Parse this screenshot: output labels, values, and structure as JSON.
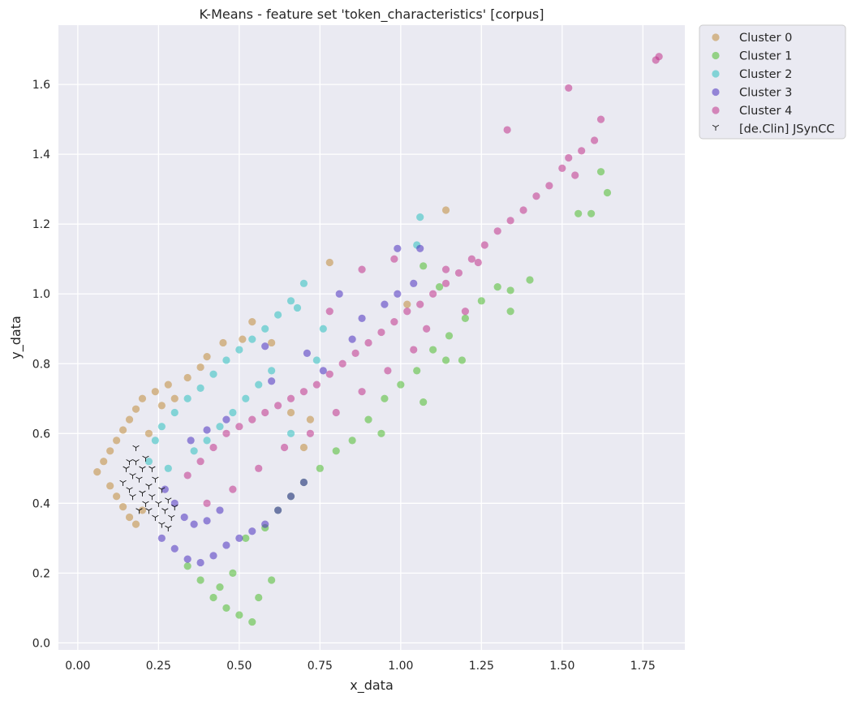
{
  "chart_data": {
    "type": "scatter",
    "title": "K-Means - feature set 'token_characteristics' [corpus]",
    "xlabel": "x_data",
    "ylabel": "y_data",
    "xlim": [
      -0.06,
      1.88
    ],
    "ylim": [
      -0.02,
      1.77
    ],
    "xticks": [
      "0.00",
      "0.25",
      "0.50",
      "0.75",
      "1.00",
      "1.25",
      "1.50",
      "1.75"
    ],
    "yticks": [
      "0.0",
      "0.2",
      "0.4",
      "0.6",
      "0.8",
      "1.0",
      "1.2",
      "1.4",
      "1.6"
    ],
    "grid": true,
    "legend_position": "outside-top-right",
    "series": [
      {
        "name": "Cluster 0",
        "color": "#c08a3a",
        "marker": "circle",
        "points": [
          [
            0.06,
            0.49
          ],
          [
            0.08,
            0.52
          ],
          [
            0.1,
            0.55
          ],
          [
            0.12,
            0.58
          ],
          [
            0.14,
            0.61
          ],
          [
            0.16,
            0.64
          ],
          [
            0.18,
            0.67
          ],
          [
            0.2,
            0.7
          ],
          [
            0.1,
            0.45
          ],
          [
            0.12,
            0.42
          ],
          [
            0.14,
            0.39
          ],
          [
            0.16,
            0.36
          ],
          [
            0.18,
            0.34
          ],
          [
            0.2,
            0.38
          ],
          [
            0.24,
            0.72
          ],
          [
            0.28,
            0.74
          ],
          [
            0.26,
            0.68
          ],
          [
            0.22,
            0.6
          ],
          [
            0.3,
            0.7
          ],
          [
            0.34,
            0.76
          ],
          [
            0.38,
            0.79
          ],
          [
            0.4,
            0.82
          ],
          [
            0.45,
            0.86
          ],
          [
            0.51,
            0.87
          ],
          [
            0.54,
            0.92
          ],
          [
            0.6,
            0.86
          ],
          [
            0.78,
            1.09
          ],
          [
            0.66,
            0.66
          ],
          [
            0.72,
            0.64
          ],
          [
            1.14,
            1.24
          ],
          [
            1.02,
            0.97
          ],
          [
            0.7,
            0.56
          ]
        ]
      },
      {
        "name": "Cluster 1",
        "color": "#4cbb2e",
        "marker": "circle",
        "points": [
          [
            0.34,
            0.22
          ],
          [
            0.38,
            0.18
          ],
          [
            0.42,
            0.13
          ],
          [
            0.46,
            0.1
          ],
          [
            0.5,
            0.08
          ],
          [
            0.54,
            0.06
          ],
          [
            0.48,
            0.2
          ],
          [
            0.52,
            0.3
          ],
          [
            0.58,
            0.33
          ],
          [
            0.62,
            0.38
          ],
          [
            0.66,
            0.42
          ],
          [
            0.7,
            0.46
          ],
          [
            0.75,
            0.5
          ],
          [
            0.8,
            0.55
          ],
          [
            0.85,
            0.58
          ],
          [
            0.9,
            0.64
          ],
          [
            0.95,
            0.7
          ],
          [
            1.0,
            0.74
          ],
          [
            1.05,
            0.78
          ],
          [
            1.1,
            0.84
          ],
          [
            1.15,
            0.88
          ],
          [
            1.2,
            0.93
          ],
          [
            1.25,
            0.98
          ],
          [
            1.3,
            1.02
          ],
          [
            1.34,
            1.01
          ],
          [
            1.4,
            1.04
          ],
          [
            1.34,
            0.95
          ],
          [
            1.14,
            0.81
          ],
          [
            1.19,
            0.81
          ],
          [
            1.07,
            0.69
          ],
          [
            0.94,
            0.6
          ],
          [
            1.55,
            1.23
          ],
          [
            1.64,
            1.29
          ],
          [
            1.62,
            1.35
          ],
          [
            1.59,
            1.23
          ],
          [
            1.07,
            1.08
          ],
          [
            1.12,
            1.02
          ],
          [
            0.6,
            0.18
          ],
          [
            0.56,
            0.13
          ],
          [
            0.44,
            0.16
          ]
        ]
      },
      {
        "name": "Cluster 2",
        "color": "#2bbfbf",
        "marker": "circle",
        "points": [
          [
            0.22,
            0.52
          ],
          [
            0.24,
            0.58
          ],
          [
            0.26,
            0.62
          ],
          [
            0.3,
            0.66
          ],
          [
            0.34,
            0.7
          ],
          [
            0.38,
            0.73
          ],
          [
            0.42,
            0.77
          ],
          [
            0.46,
            0.81
          ],
          [
            0.5,
            0.84
          ],
          [
            0.54,
            0.87
          ],
          [
            0.58,
            0.9
          ],
          [
            0.62,
            0.94
          ],
          [
            0.66,
            0.98
          ],
          [
            0.7,
            1.03
          ],
          [
            0.68,
            0.96
          ],
          [
            0.6,
            0.78
          ],
          [
            0.56,
            0.74
          ],
          [
            0.52,
            0.7
          ],
          [
            0.48,
            0.66
          ],
          [
            0.44,
            0.62
          ],
          [
            0.4,
            0.58
          ],
          [
            0.36,
            0.55
          ],
          [
            0.76,
            0.9
          ],
          [
            0.74,
            0.81
          ],
          [
            1.06,
            1.22
          ],
          [
            1.05,
            1.14
          ],
          [
            0.66,
            0.6
          ],
          [
            0.28,
            0.5
          ]
        ]
      },
      {
        "name": "Cluster 3",
        "color": "#4a2fc0",
        "marker": "circle",
        "points": [
          [
            0.26,
            0.3
          ],
          [
            0.3,
            0.27
          ],
          [
            0.34,
            0.24
          ],
          [
            0.38,
            0.23
          ],
          [
            0.42,
            0.25
          ],
          [
            0.46,
            0.28
          ],
          [
            0.5,
            0.3
          ],
          [
            0.54,
            0.32
          ],
          [
            0.58,
            0.34
          ],
          [
            0.62,
            0.38
          ],
          [
            0.66,
            0.42
          ],
          [
            0.7,
            0.46
          ],
          [
            0.27,
            0.44
          ],
          [
            0.3,
            0.4
          ],
          [
            0.33,
            0.36
          ],
          [
            0.36,
            0.34
          ],
          [
            0.4,
            0.35
          ],
          [
            0.44,
            0.38
          ],
          [
            0.35,
            0.58
          ],
          [
            0.4,
            0.61
          ],
          [
            0.46,
            0.64
          ],
          [
            0.58,
            0.85
          ],
          [
            0.71,
            0.83
          ],
          [
            0.6,
            0.75
          ],
          [
            0.85,
            0.87
          ],
          [
            0.88,
            0.93
          ],
          [
            0.95,
            0.97
          ],
          [
            0.99,
            1.0
          ],
          [
            0.99,
            1.13
          ],
          [
            1.06,
            1.13
          ],
          [
            1.04,
            1.03
          ],
          [
            0.81,
            1.0
          ],
          [
            0.76,
            0.78
          ]
        ]
      },
      {
        "name": "Cluster 4",
        "color": "#c0328b",
        "marker": "circle",
        "points": [
          [
            0.34,
            0.48
          ],
          [
            0.38,
            0.52
          ],
          [
            0.42,
            0.56
          ],
          [
            0.46,
            0.6
          ],
          [
            0.5,
            0.62
          ],
          [
            0.54,
            0.64
          ],
          [
            0.58,
            0.66
          ],
          [
            0.62,
            0.68
          ],
          [
            0.66,
            0.7
          ],
          [
            0.7,
            0.72
          ],
          [
            0.74,
            0.74
          ],
          [
            0.78,
            0.77
          ],
          [
            0.82,
            0.8
          ],
          [
            0.86,
            0.83
          ],
          [
            0.9,
            0.86
          ],
          [
            0.94,
            0.89
          ],
          [
            0.98,
            0.92
          ],
          [
            1.02,
            0.95
          ],
          [
            1.06,
            0.97
          ],
          [
            1.1,
            1.0
          ],
          [
            1.14,
            1.03
          ],
          [
            1.18,
            1.06
          ],
          [
            1.22,
            1.1
          ],
          [
            1.26,
            1.14
          ],
          [
            1.3,
            1.18
          ],
          [
            1.34,
            1.21
          ],
          [
            1.38,
            1.24
          ],
          [
            1.42,
            1.28
          ],
          [
            1.46,
            1.31
          ],
          [
            1.5,
            1.36
          ],
          [
            1.52,
            1.39
          ],
          [
            1.54,
            1.34
          ],
          [
            1.56,
            1.41
          ],
          [
            1.6,
            1.44
          ],
          [
            1.62,
            1.5
          ],
          [
            1.52,
            1.59
          ],
          [
            1.33,
            1.47
          ],
          [
            1.79,
            1.67
          ],
          [
            1.8,
            1.68
          ],
          [
            0.4,
            0.4
          ],
          [
            0.48,
            0.44
          ],
          [
            0.56,
            0.5
          ],
          [
            0.64,
            0.56
          ],
          [
            0.72,
            0.6
          ],
          [
            0.8,
            0.66
          ],
          [
            0.88,
            0.72
          ],
          [
            0.96,
            0.78
          ],
          [
            1.04,
            0.84
          ],
          [
            1.08,
            0.9
          ],
          [
            0.88,
            1.07
          ],
          [
            1.14,
            1.07
          ],
          [
            1.2,
            0.95
          ],
          [
            1.24,
            1.09
          ],
          [
            0.98,
            1.1
          ],
          [
            0.78,
            0.95
          ]
        ]
      },
      {
        "name": "[de.Clin] JSynCC",
        "color": "#111111",
        "marker": "tri_down",
        "points": [
          [
            0.14,
            0.46
          ],
          [
            0.15,
            0.5
          ],
          [
            0.16,
            0.44
          ],
          [
            0.17,
            0.48
          ],
          [
            0.18,
            0.52
          ],
          [
            0.17,
            0.42
          ],
          [
            0.19,
            0.47
          ],
          [
            0.2,
            0.43
          ],
          [
            0.2,
            0.5
          ],
          [
            0.21,
            0.4
          ],
          [
            0.22,
            0.45
          ],
          [
            0.22,
            0.38
          ],
          [
            0.23,
            0.42
          ],
          [
            0.24,
            0.47
          ],
          [
            0.24,
            0.36
          ],
          [
            0.25,
            0.4
          ],
          [
            0.26,
            0.44
          ],
          [
            0.27,
            0.38
          ],
          [
            0.28,
            0.41
          ],
          [
            0.29,
            0.36
          ],
          [
            0.3,
            0.39
          ],
          [
            0.28,
            0.33
          ],
          [
            0.26,
            0.34
          ],
          [
            0.19,
            0.38
          ],
          [
            0.16,
            0.52
          ],
          [
            0.18,
            0.56
          ],
          [
            0.21,
            0.53
          ],
          [
            0.23,
            0.5
          ]
        ]
      }
    ]
  }
}
